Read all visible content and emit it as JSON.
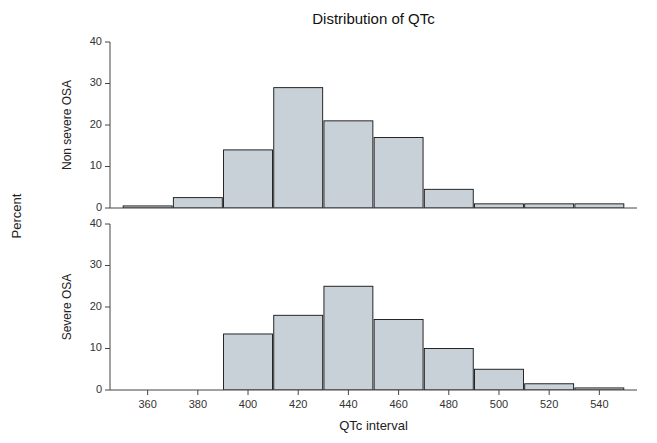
{
  "chart_data": [
    {
      "type": "bar",
      "title": "Distribution of QTc",
      "ylabel": "Percent",
      "x": [
        360,
        380,
        400,
        420,
        440,
        460,
        480,
        500,
        520,
        540
      ],
      "series": [
        {
          "name": "Non severe OSA",
          "color": "#c8d0d8",
          "values": [
            0.5,
            2.5,
            14,
            29,
            21,
            17,
            4.5,
            1,
            1,
            1
          ]
        }
      ],
      "xlim": [
        345,
        555
      ],
      "ylim": [
        0,
        40
      ],
      "yticks": [
        0,
        10,
        20,
        30,
        40
      ],
      "tick_labels": "y"
    },
    {
      "type": "bar",
      "xlabel": "QTc interval",
      "x": [
        360,
        380,
        400,
        420,
        440,
        460,
        480,
        500,
        520,
        540
      ],
      "series": [
        {
          "name": "Severe OSA",
          "color": "#c8d0d8",
          "values": [
            0,
            0,
            13.5,
            18,
            25,
            17,
            10,
            5,
            1.5,
            0.5
          ]
        }
      ],
      "xlim": [
        345,
        555
      ],
      "xticks": [
        360,
        380,
        400,
        420,
        440,
        460,
        480,
        500,
        520,
        540
      ],
      "ylim": [
        0,
        40
      ],
      "yticks": [
        0,
        10,
        20,
        30,
        40
      ]
    }
  ]
}
